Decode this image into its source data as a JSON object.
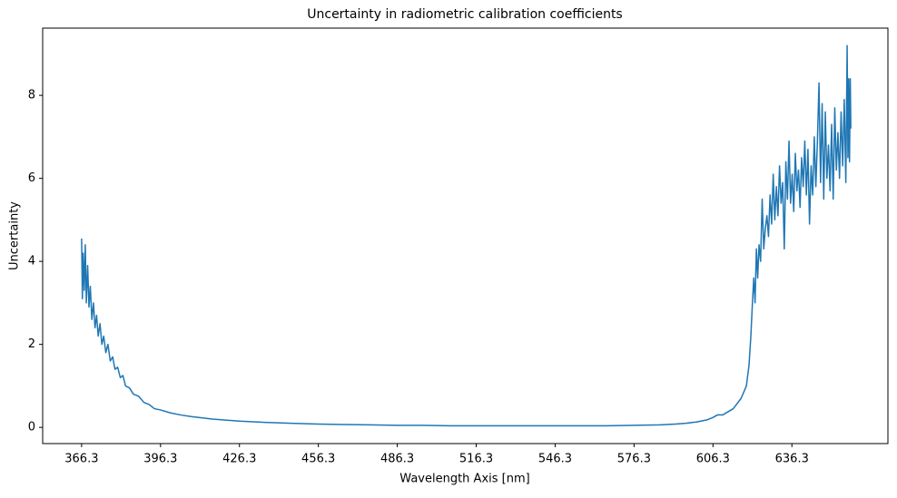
{
  "chart_data": {
    "type": "line",
    "title": "Uncertainty in radiometric calibration coefficients",
    "x_label": "Wavelength Axis [nm]",
    "y_label": "Uncertainty",
    "xlim": [
      351.5,
      672.8
    ],
    "ylim": [
      -0.39,
      9.62
    ],
    "xticks": [
      366.3,
      396.3,
      426.3,
      456.3,
      486.3,
      516.3,
      546.3,
      576.3,
      606.3,
      636.3
    ],
    "yticks": [
      0,
      2,
      4,
      6,
      8
    ],
    "series": [
      {
        "color": "#1f77b4",
        "x": [
          366.3,
          366.6,
          366.9,
          367.3,
          367.7,
          368.1,
          368.6,
          369.1,
          369.6,
          370.2,
          370.8,
          371.4,
          372.0,
          372.6,
          373.3,
          374.0,
          374.7,
          375.5,
          376.3,
          377.2,
          378.1,
          379.0,
          380.0,
          381.0,
          382.0,
          383.0,
          384.5,
          386.0,
          388.0,
          390.0,
          392.0,
          394.0,
          396.3,
          400,
          404,
          408,
          412,
          416,
          420,
          426.3,
          436,
          446,
          456.3,
          466,
          476,
          486.3,
          496,
          506,
          516.3,
          526,
          536,
          546.3,
          556,
          566,
          576.3,
          586,
          592,
          596,
          600,
          604,
          606.3,
          608,
          610,
          614,
          617,
          619,
          620,
          620.7,
          621.3,
          621.8,
          622.3,
          622.8,
          623.3,
          623.8,
          624.4,
          625.0,
          625.6,
          626.2,
          626.8,
          627.4,
          628.0,
          628.6,
          629.2,
          629.8,
          630.4,
          631,
          631.6,
          632.2,
          632.8,
          633.4,
          634,
          634.6,
          635.2,
          635.8,
          636.4,
          637,
          637.6,
          638.2,
          638.8,
          639.4,
          640,
          640.6,
          641.2,
          641.8,
          642.4,
          643,
          643.6,
          644.2,
          644.8,
          645.4,
          646,
          646.6,
          647.2,
          647.8,
          648.4,
          649,
          649.6,
          650.2,
          650.8,
          651.4,
          652,
          652.6,
          653.2,
          653.8,
          654.4,
          655,
          655.6,
          656.2,
          656.8,
          657.3,
          657.6,
          657.9,
          658.2,
          658.5,
          658.7
        ],
        "values": [
          4.55,
          3.1,
          4.2,
          3.3,
          4.4,
          3.0,
          3.9,
          2.9,
          3.4,
          2.6,
          3.0,
          2.4,
          2.7,
          2.2,
          2.5,
          2.0,
          2.2,
          1.8,
          2.0,
          1.6,
          1.7,
          1.4,
          1.45,
          1.2,
          1.25,
          1.0,
          0.95,
          0.8,
          0.75,
          0.6,
          0.55,
          0.45,
          0.42,
          0.35,
          0.3,
          0.26,
          0.23,
          0.2,
          0.18,
          0.15,
          0.12,
          0.1,
          0.08,
          0.07,
          0.06,
          0.05,
          0.05,
          0.04,
          0.04,
          0.04,
          0.04,
          0.04,
          0.04,
          0.04,
          0.05,
          0.06,
          0.08,
          0.1,
          0.13,
          0.18,
          0.24,
          0.3,
          0.3,
          0.45,
          0.7,
          1.0,
          1.5,
          2.2,
          3.0,
          3.6,
          3.0,
          4.3,
          3.6,
          4.4,
          4.0,
          5.5,
          4.3,
          4.8,
          5.1,
          4.6,
          5.6,
          4.9,
          6.1,
          5.0,
          5.8,
          5.1,
          6.3,
          5.4,
          5.9,
          4.3,
          6.4,
          5.5,
          6.9,
          5.4,
          6.1,
          5.2,
          6.6,
          5.7,
          6.2,
          5.3,
          6.5,
          5.8,
          6.9,
          5.6,
          6.7,
          4.9,
          6.3,
          5.6,
          7.0,
          5.8,
          6.9,
          8.3,
          5.9,
          7.8,
          5.5,
          7.6,
          6.0,
          6.8,
          5.7,
          7.3,
          5.5,
          7.7,
          6.2,
          7.1,
          6.0,
          7.6,
          6.3,
          7.9,
          5.9,
          9.2,
          6.5,
          8.4,
          6.4,
          8.4,
          7.2
        ]
      }
    ]
  }
}
